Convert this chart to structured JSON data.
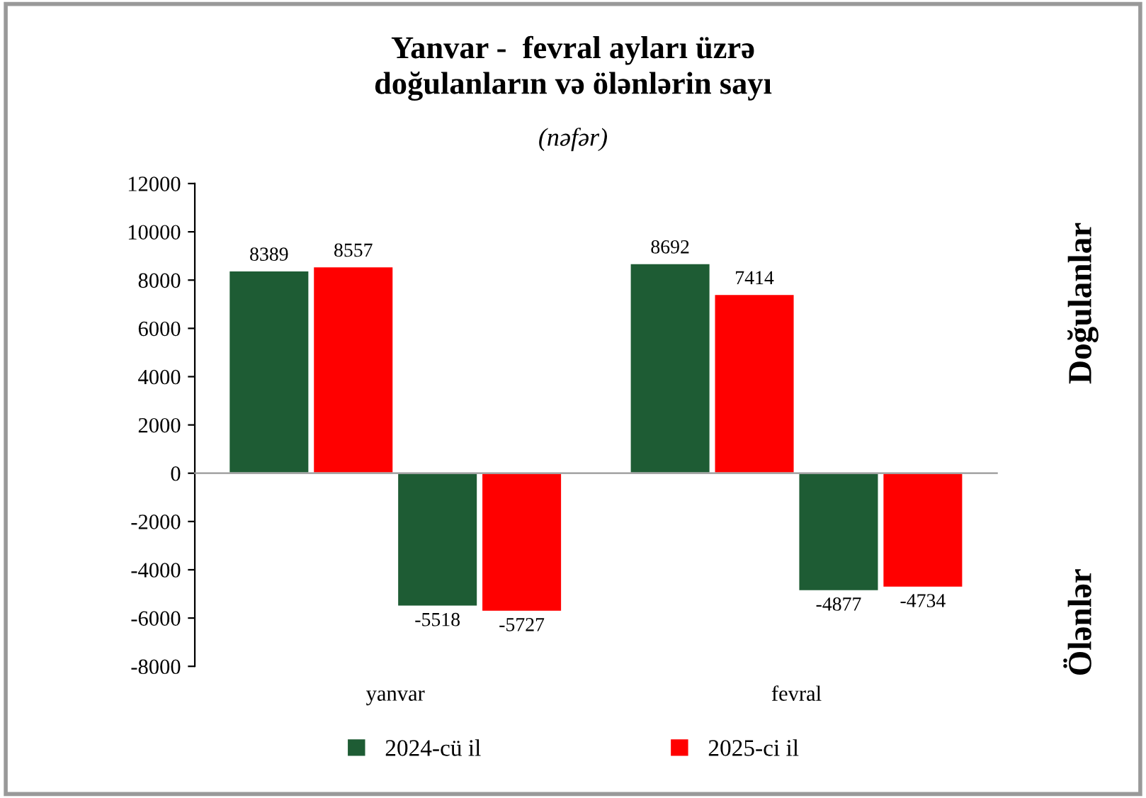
{
  "chart_data": {
    "type": "bar",
    "title": "Yanvar -  fevral ayları üzrə\ndoğulanların və ölənlərin sayı",
    "subtitle": "(nəfər)",
    "categories": [
      "yanvar",
      "fevral"
    ],
    "series": [
      {
        "name": "2024-cü il",
        "color": "#1e5c34",
        "values": [
          8389,
          8692
        ]
      },
      {
        "name": "2025-ci il",
        "color": "#ff0000",
        "values": [
          8557,
          7414
        ]
      },
      {
        "color": "#1e5c34",
        "values": [
          -5518,
          -4877
        ]
      },
      {
        "color": "#ff0000",
        "values": [
          -5727,
          -4734
        ]
      }
    ],
    "ylim": [
      -8000,
      12000
    ],
    "yticks": [
      -8000,
      -6000,
      -4000,
      -2000,
      0,
      2000,
      4000,
      6000,
      8000,
      10000,
      12000
    ],
    "data_labels": true,
    "legend": "bottom",
    "annotations": [
      "Doğulanlar",
      "Ölənlər"
    ]
  }
}
